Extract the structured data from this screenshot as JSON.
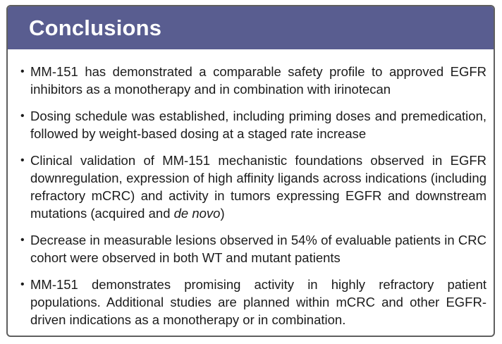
{
  "slide": {
    "title": "Conclusions",
    "bullet_char": "•",
    "colors": {
      "header_background": "#595d90",
      "title_text": "#ffffff",
      "body_text": "#1b1b1b",
      "border": "#5f5f5f",
      "page_background": "#ffffff"
    },
    "bullets": [
      {
        "text": "MM-151 has demonstrated a comparable safety profile to approved EGFR inhibitors as a monotherapy and in combination with irinotecan"
      },
      {
        "text": "Dosing schedule was established, including priming doses and premedication, followed by weight-based dosing at a staged rate increase"
      },
      {
        "prefix": "Clinical validation of MM-151 mechanistic foundations observed in EGFR downregulation, expression of high affinity ligands across indications (including refractory mCRC) and activity in tumors expressing EGFR and downstream mutations (acquired and ",
        "italic": "de novo",
        "suffix": ")"
      },
      {
        "text": "Decrease in measurable lesions observed in 54% of evaluable patients in CRC cohort were observed in both WT and mutant patients"
      },
      {
        "text": "MM-151 demonstrates promising activity in highly refractory patient populations. Additional studies are planned within mCRC and other EGFR-driven indications as a monotherapy or in combination."
      }
    ]
  }
}
